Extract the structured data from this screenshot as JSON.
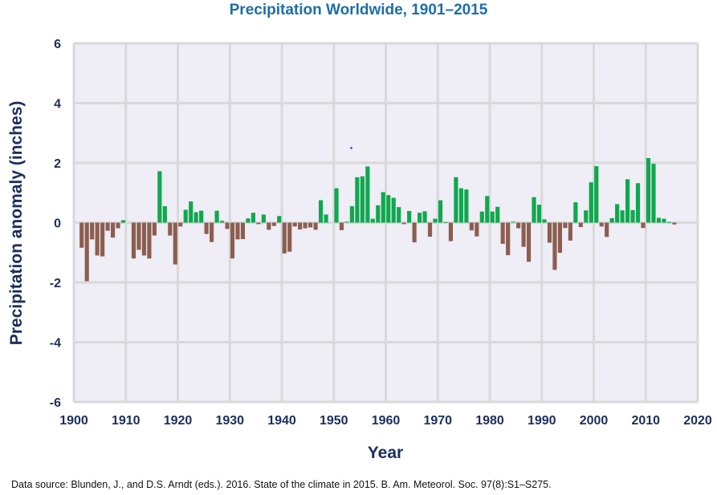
{
  "chart_data": {
    "type": "bar",
    "title": "Precipitation Worldwide, 1901–2015",
    "xlabel": "Year",
    "ylabel": "Precipitation anomaly (inches)",
    "xlim": [
      1900,
      2020
    ],
    "ylim": [
      -6,
      6
    ],
    "x_ticks": [
      1900,
      1910,
      1920,
      1930,
      1940,
      1950,
      1960,
      1970,
      1980,
      1990,
      2000,
      2010,
      2020
    ],
    "y_ticks": [
      6,
      4,
      2,
      0,
      -2,
      -4,
      -6
    ],
    "grid": true,
    "colors": {
      "positive": "#0fa84e",
      "negative": "#8c5e50",
      "grid": "#d9d9d9",
      "plot_bg": "#efedf6"
    },
    "years": [
      1901,
      1902,
      1903,
      1904,
      1905,
      1906,
      1907,
      1908,
      1909,
      1910,
      1911,
      1912,
      1913,
      1914,
      1915,
      1916,
      1917,
      1918,
      1919,
      1920,
      1921,
      1922,
      1923,
      1924,
      1925,
      1926,
      1927,
      1928,
      1929,
      1930,
      1931,
      1932,
      1933,
      1934,
      1935,
      1936,
      1937,
      1938,
      1939,
      1940,
      1941,
      1942,
      1943,
      1944,
      1945,
      1946,
      1947,
      1948,
      1949,
      1950,
      1951,
      1952,
      1953,
      1954,
      1955,
      1956,
      1957,
      1958,
      1959,
      1960,
      1961,
      1962,
      1963,
      1964,
      1965,
      1966,
      1967,
      1968,
      1969,
      1970,
      1971,
      1972,
      1973,
      1974,
      1975,
      1976,
      1977,
      1978,
      1979,
      1980,
      1981,
      1982,
      1983,
      1984,
      1985,
      1986,
      1987,
      1988,
      1989,
      1990,
      1991,
      1992,
      1993,
      1994,
      1995,
      1996,
      1997,
      1998,
      1999,
      2000,
      2001,
      2002,
      2003,
      2004,
      2005,
      2006,
      2007,
      2008,
      2009,
      2010,
      2011,
      2012,
      2013,
      2014,
      2015
    ],
    "values": [
      -0.84,
      -1.96,
      -0.56,
      -1.1,
      -1.13,
      -0.27,
      -0.5,
      -0.19,
      0.08,
      0.0,
      -1.2,
      -0.91,
      -1.1,
      -1.2,
      -0.43,
      1.72,
      0.55,
      -0.43,
      -1.4,
      -0.13,
      0.43,
      0.71,
      0.35,
      0.4,
      -0.38,
      -0.65,
      0.4,
      0.06,
      -0.21,
      -1.2,
      -0.56,
      -0.55,
      0.14,
      0.33,
      -0.05,
      0.27,
      -0.24,
      -0.11,
      0.22,
      -1.03,
      -0.97,
      -0.13,
      -0.23,
      -0.19,
      -0.16,
      -0.24,
      0.75,
      0.27,
      0.0,
      1.15,
      -0.25,
      0.03,
      0.55,
      1.52,
      1.55,
      1.88,
      0.13,
      0.58,
      1.02,
      0.92,
      0.83,
      0.52,
      -0.05,
      0.39,
      -0.66,
      0.33,
      0.38,
      -0.47,
      0.13,
      0.75,
      0.02,
      -0.62,
      1.52,
      1.15,
      1.11,
      -0.26,
      -0.46,
      0.37,
      0.89,
      0.37,
      0.53,
      -0.71,
      -1.09,
      0.03,
      -0.19,
      -0.81,
      -1.31,
      0.85,
      0.6,
      0.11,
      -0.67,
      -1.58,
      -1.01,
      -0.18,
      -0.6,
      0.68,
      -0.15,
      0.41,
      1.35,
      1.89,
      -0.13,
      -0.48,
      0.15,
      0.62,
      0.41,
      1.45,
      0.42,
      1.32,
      -0.18,
      2.16,
      1.97,
      0.16,
      0.13,
      0.02,
      -0.06
    ]
  },
  "source_note": "Data source: Blunden, J., and D.S. Arndt (eds.). 2016. State of the climate in 2015. B. Am. Meteorol. Soc. 97(8):S1–S275."
}
